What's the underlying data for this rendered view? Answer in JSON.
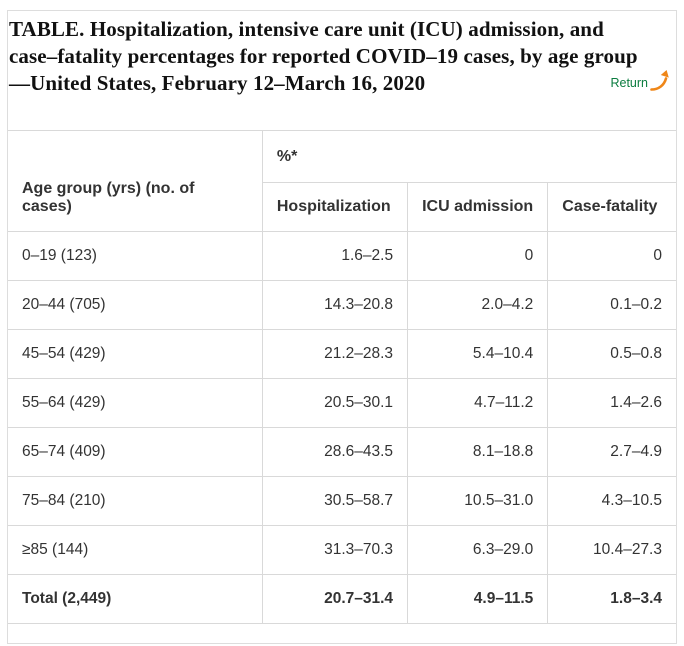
{
  "header": {
    "title_lines": [
      "TABLE. Hospitalization, intensive care unit (ICU) admission, and",
      "case–fatality percentages for reported COVID–19 cases, by age group",
      "—United States, February 12–March 16, 2020"
    ],
    "return_label": "Return"
  },
  "chart_data": {
    "type": "table",
    "title": "TABLE. Hospitalization, intensive care unit (ICU) admission, and case–fatality percentages for reported COVID–19 cases, by age group —United States, February 12–March 16, 2020",
    "unit_header": "%*",
    "columns": [
      "Age group (yrs) (no. of cases)",
      "Hospitalization",
      "ICU admission",
      "Case-fatality"
    ],
    "rows": [
      {
        "cells": [
          "0–19 (123)",
          "1.6–2.5",
          "0",
          "0"
        ],
        "bold": false
      },
      {
        "cells": [
          "20–44 (705)",
          "14.3–20.8",
          "2.0–4.2",
          "0.1–0.2"
        ],
        "bold": false
      },
      {
        "cells": [
          "45–54 (429)",
          "21.2–28.3",
          "5.4–10.4",
          "0.5–0.8"
        ],
        "bold": false
      },
      {
        "cells": [
          "55–64 (429)",
          "20.5–30.1",
          "4.7–11.2",
          "1.4–2.6"
        ],
        "bold": false
      },
      {
        "cells": [
          "65–74 (409)",
          "28.6–43.5",
          "8.1–18.8",
          "2.7–4.9"
        ],
        "bold": false
      },
      {
        "cells": [
          "75–84 (210)",
          "30.5–58.7",
          "10.5–31.0",
          "4.3–10.5"
        ],
        "bold": false
      },
      {
        "cells": [
          "≥85 (144)",
          "31.3–70.3",
          "6.3–29.0",
          "10.4–27.3"
        ],
        "bold": false
      },
      {
        "cells": [
          "Total (2,449)",
          "20.7–31.4",
          "4.9–11.5",
          "1.8–3.4"
        ],
        "bold": true
      }
    ]
  },
  "colors": {
    "return_green": "#0b7c3f",
    "arrow_orange": "#ef8618",
    "table_border": "#d9d9d9",
    "container_border": "#dddddd",
    "text": "#333333",
    "title_text": "#111111"
  }
}
